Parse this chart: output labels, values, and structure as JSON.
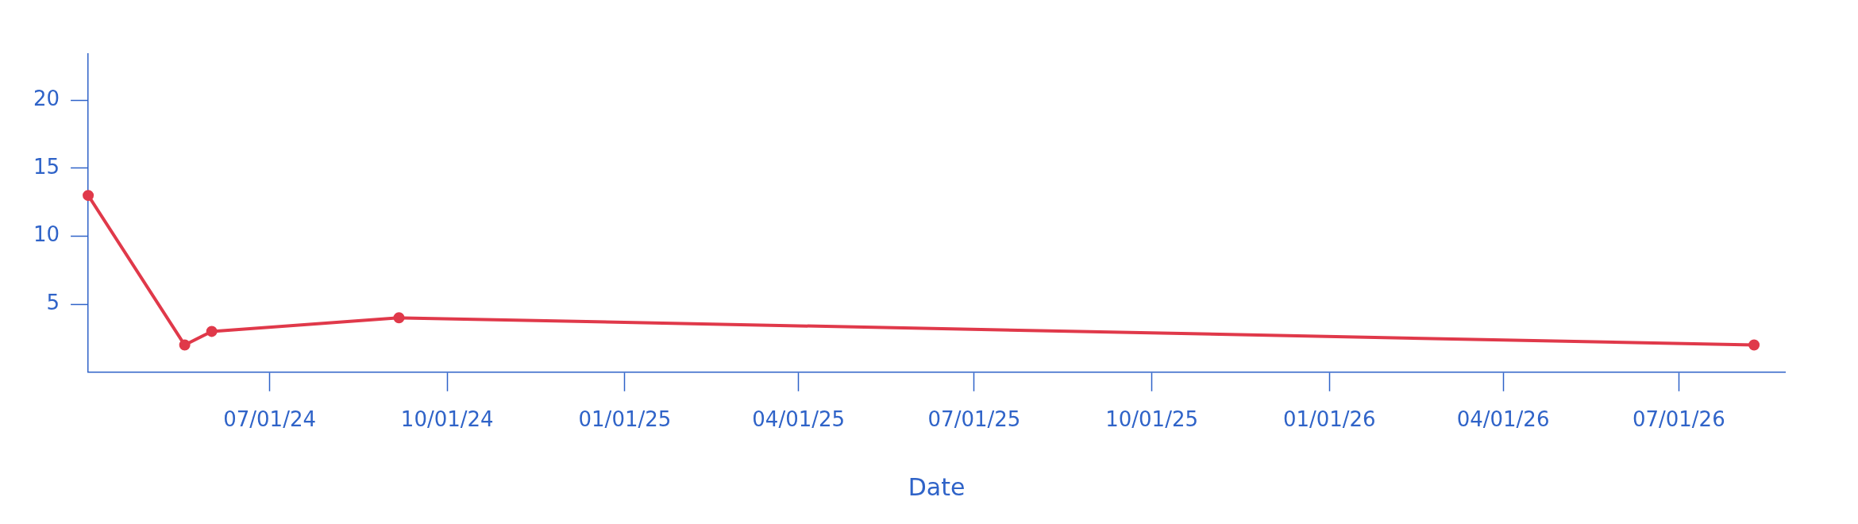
{
  "chart_data": {
    "type": "line",
    "xlabel": "Date",
    "x": [
      "2024-03-29",
      "2024-05-18",
      "2024-06-01",
      "2024-09-06",
      "2026-08-09"
    ],
    "series": [
      {
        "color": "#e0394a",
        "values": [
          13,
          2,
          3,
          4,
          2
        ]
      }
    ],
    "xlim": [
      "2024-03-29",
      "2026-08-25"
    ],
    "xticks": [
      {
        "value": "2024-07-01",
        "label": "07/01/24"
      },
      {
        "value": "2024-10-01",
        "label": "10/01/24"
      },
      {
        "value": "2025-01-01",
        "label": "01/01/25"
      },
      {
        "value": "2025-04-01",
        "label": "04/01/25"
      },
      {
        "value": "2025-07-01",
        "label": "07/01/25"
      },
      {
        "value": "2025-10-01",
        "label": "10/01/25"
      },
      {
        "value": "2026-01-01",
        "label": "01/01/26"
      },
      {
        "value": "2026-04-01",
        "label": "04/01/26"
      },
      {
        "value": "2026-07-01",
        "label": "07/01/26"
      }
    ],
    "ylim": [
      0,
      23.4
    ],
    "yticks": [
      5,
      10,
      15,
      20
    ],
    "grid": false,
    "legend": false,
    "marker": "circle",
    "line_style": "solid"
  }
}
